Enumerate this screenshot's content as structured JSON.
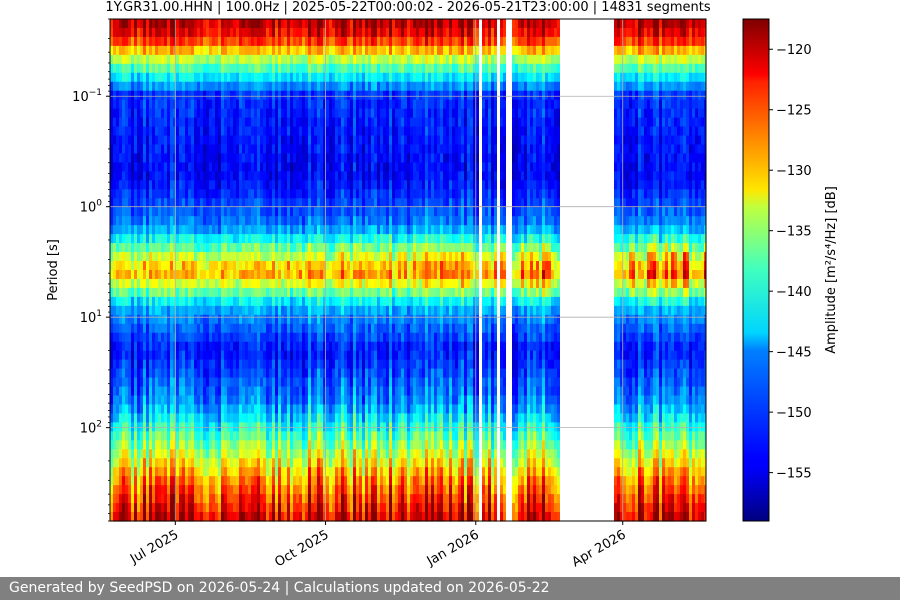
{
  "chart_data": {
    "type": "heatmap",
    "title": "1Y.GR31.00.HHN | 100.0Hz | 2025-05-22T00:00:02 - 2026-05-21T23:00:00 | 14831 segments",
    "ylabel": "Period [s]",
    "yscale": "log",
    "yaxis_inverted": true,
    "ylim": [
      700,
      0.02
    ],
    "y_ticks": [
      {
        "value": 0.1,
        "base": "10",
        "exp": "−1"
      },
      {
        "value": 1,
        "base": "10",
        "exp": "0"
      },
      {
        "value": 10,
        "base": "10",
        "exp": "1"
      },
      {
        "value": 100,
        "base": "10",
        "exp": "2"
      }
    ],
    "xlim": [
      "2025-05-22",
      "2026-05-22"
    ],
    "x_ticks": [
      {
        "date": "2025-07-01",
        "label": "Jul 2025"
      },
      {
        "date": "2025-10-01",
        "label": "Oct 2025"
      },
      {
        "date": "2026-01-01",
        "label": "Jan 2026"
      },
      {
        "date": "2026-04-01",
        "label": "Apr 2026"
      }
    ],
    "grid": true,
    "data_gaps": [
      [
        "2026-01-02",
        "2026-01-05"
      ],
      [
        "2026-01-13",
        "2026-01-16"
      ],
      [
        "2026-01-19",
        "2026-01-22"
      ],
      [
        "2026-02-22",
        "2026-03-26"
      ]
    ],
    "colorbar": {
      "label": "Amplitude [m²/s⁴/Hz] [dB]",
      "colormap": "jet",
      "range": [
        -159,
        -117.5
      ],
      "ticks": [
        -120,
        -125,
        -130,
        -135,
        -140,
        -145,
        -150,
        -155
      ],
      "tick_labels": [
        "−120",
        "−125",
        "−130",
        "−135",
        "−140",
        "−145",
        "−150",
        "−155"
      ]
    },
    "noise_profile": [
      {
        "period": 0.02,
        "db": -119
      },
      {
        "period": 0.03,
        "db": -123
      },
      {
        "period": 0.05,
        "db": -138
      },
      {
        "period": 0.1,
        "db": -152
      },
      {
        "period": 0.5,
        "db": -154
      },
      {
        "period": 1.5,
        "db": -149
      },
      {
        "period": 4,
        "db": -134
      },
      {
        "period": 8,
        "db": -147
      },
      {
        "period": 20,
        "db": -153
      },
      {
        "period": 60,
        "db": -148
      },
      {
        "period": 150,
        "db": -137
      },
      {
        "period": 300,
        "db": -128
      },
      {
        "period": 700,
        "db": -120
      }
    ]
  },
  "footer": {
    "text": "Generated by SeedPSD on 2026-05-24 | Calculations updated on 2026-05-22"
  }
}
